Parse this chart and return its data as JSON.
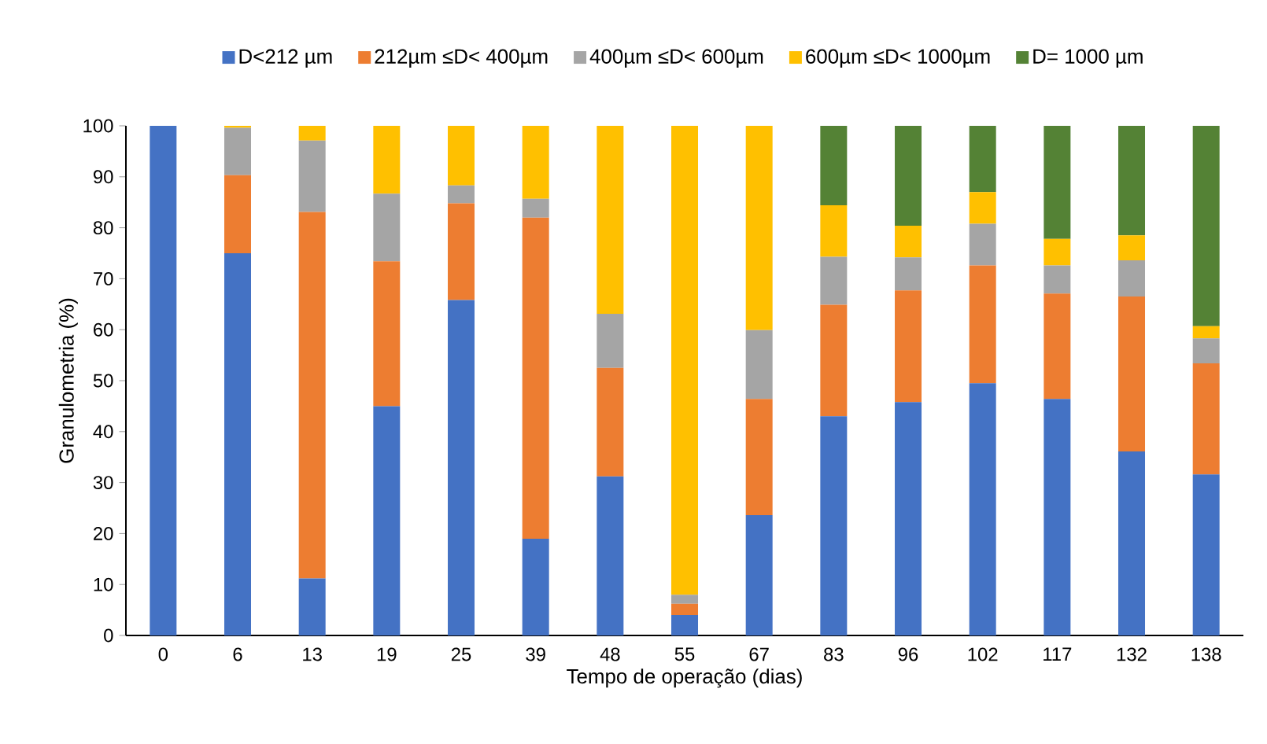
{
  "chart_data": {
    "type": "bar",
    "stacked": true,
    "xlabel": "Tempo de operação (dias)",
    "ylabel": "Granulometria (%)",
    "categories": [
      "0",
      "6",
      "13",
      "19",
      "25",
      "39",
      "48",
      "55",
      "67",
      "83",
      "96",
      "102",
      "117",
      "132",
      "138"
    ],
    "ylim": [
      0,
      100
    ],
    "yticks": [
      0,
      10,
      20,
      30,
      40,
      50,
      60,
      70,
      80,
      90,
      100
    ],
    "legend": "top",
    "grid": false,
    "series": [
      {
        "name": "D<212 µm",
        "color": "#4472c4",
        "values": [
          100,
          75,
          11.2,
          45,
          65.8,
          19,
          31.2,
          4,
          23.6,
          43,
          45.8,
          49.5,
          46.4,
          36.1,
          31.6
        ]
      },
      {
        "name": "212µm ≤D< 400µm",
        "color": "#ed7d31",
        "values": [
          0,
          15.3,
          71.9,
          28.4,
          19,
          63,
          21.3,
          2.2,
          22.8,
          21.9,
          21.9,
          23.1,
          20.7,
          30.4,
          21.8
        ]
      },
      {
        "name": "400µm ≤D< 600µm",
        "color": "#a5a5a5",
        "values": [
          0,
          9.3,
          14,
          13.3,
          3.5,
          3.7,
          10.6,
          1.8,
          13.5,
          9.4,
          6.5,
          8.2,
          5.5,
          7.1,
          4.9
        ]
      },
      {
        "name": "600µm ≤D< 1000µm",
        "color": "#ffc000",
        "values": [
          0,
          0.4,
          2.9,
          13.3,
          11.7,
          14.3,
          36.9,
          92,
          40.1,
          10.1,
          6.2,
          6.2,
          5.2,
          4.9,
          2.4
        ]
      },
      {
        "name": "D= 1000 µm",
        "color": "#548235",
        "values": [
          0,
          0,
          0,
          0,
          0,
          0,
          0,
          0,
          0,
          15.6,
          19.6,
          13,
          22.2,
          21.5,
          39.3
        ]
      }
    ]
  }
}
